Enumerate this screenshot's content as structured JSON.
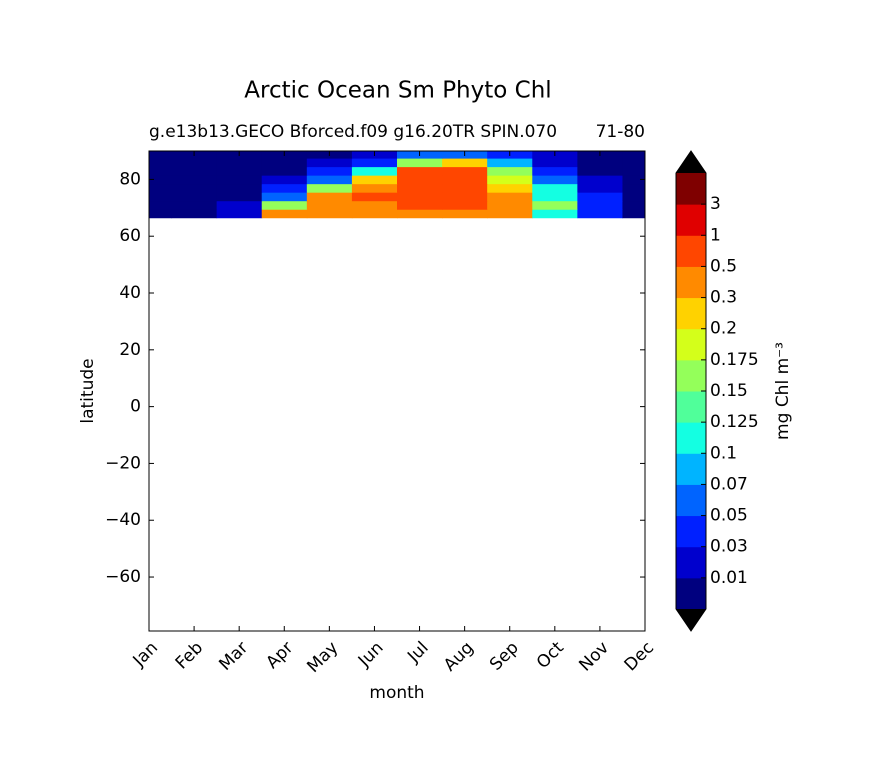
{
  "chart_data": {
    "type": "contourf",
    "title": "Arctic Ocean Sm Phyto Chl",
    "subtitle_left": "g.e13b13.GECO Bforced.f09 g16.20TR SPIN.070",
    "subtitle_right": "71-80",
    "xlabel": "month",
    "ylabel": "latitude",
    "colorbar_label": "mg Chl m⁻³",
    "categories": [
      "Jan",
      "Feb",
      "Mar",
      "Apr",
      "May",
      "Jun",
      "Jul",
      "Aug",
      "Sep",
      "Oct",
      "Nov",
      "Dec"
    ],
    "lat": [
      68,
      71,
      74,
      77,
      80,
      83,
      86,
      89
    ],
    "values": [
      [
        0.005,
        0.005,
        0.02,
        0.4,
        0.4,
        0.4,
        0.4,
        0.4,
        0.3,
        0.12,
        0.03,
        0.005
      ],
      [
        0.005,
        0.005,
        0.01,
        0.15,
        0.4,
        0.4,
        0.6,
        0.6,
        0.4,
        0.15,
        0.04,
        0.005
      ],
      [
        0.005,
        0.005,
        0.005,
        0.06,
        0.35,
        0.6,
        0.6,
        0.6,
        0.35,
        0.12,
        0.03,
        0.005
      ],
      [
        0.005,
        0.005,
        0.005,
        0.03,
        0.15,
        0.35,
        0.6,
        0.6,
        0.25,
        0.1,
        0.02,
        0.005
      ],
      [
        0.005,
        0.005,
        0.005,
        0.01,
        0.06,
        0.25,
        0.6,
        0.6,
        0.18,
        0.06,
        0.01,
        0.005
      ],
      [
        0.005,
        0.005,
        0.005,
        0.005,
        0.03,
        0.12,
        0.6,
        0.6,
        0.15,
        0.04,
        0.005,
        0.005
      ],
      [
        0.005,
        0.005,
        0.005,
        0.005,
        0.01,
        0.04,
        0.15,
        0.2,
        0.08,
        0.02,
        0.005,
        0.005
      ],
      [
        0.005,
        0.005,
        0.005,
        0.005,
        0.005,
        0.02,
        0.06,
        0.06,
        0.03,
        0.01,
        0.005,
        0.005
      ]
    ],
    "levels": [
      0.01,
      0.03,
      0.05,
      0.07,
      0.1,
      0.125,
      0.15,
      0.175,
      0.2,
      0.3,
      0.5,
      1,
      3
    ],
    "colors": [
      "#00007f",
      "#0000cd",
      "#0020ff",
      "#0064ff",
      "#00b4ff",
      "#14ffe2",
      "#50ff9a",
      "#94ff5a",
      "#d4ff1a",
      "#ffd200",
      "#ff8a00",
      "#ff4600",
      "#e00000",
      "#7f0000"
    ],
    "extend_color": "#000000",
    "ylim": [
      -79,
      90
    ],
    "yticks": [
      {
        "value": -60,
        "label": "−60"
      },
      {
        "value": -40,
        "label": "−40"
      },
      {
        "value": -20,
        "label": "−20"
      },
      0,
      20,
      40,
      60,
      80
    ]
  }
}
